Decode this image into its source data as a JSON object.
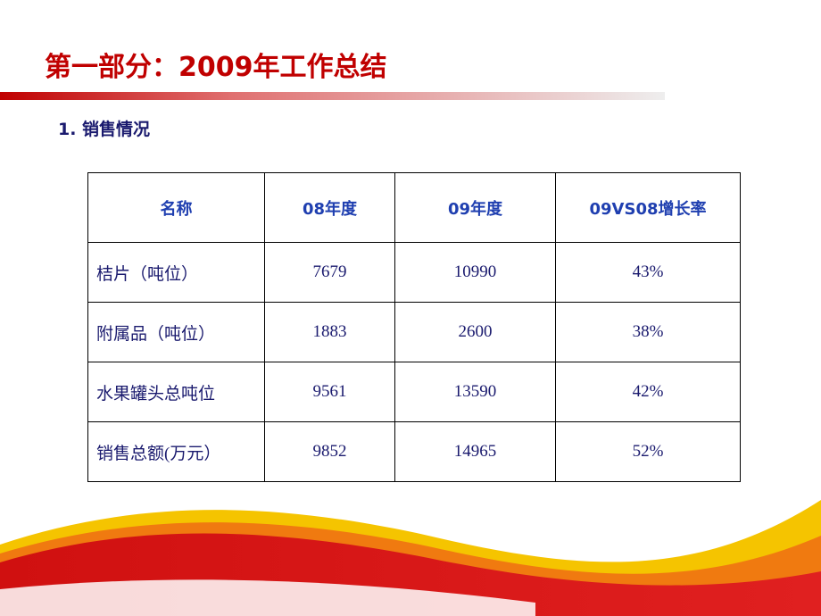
{
  "title": "第一部分：2009年工作总结",
  "subtitle": "1. 销售情况",
  "table": {
    "header": [
      "名称",
      "08年度",
      "09年度",
      "09VS08增长率"
    ],
    "rows": [
      [
        "桔片（吨位）",
        "7679",
        "10990",
        "43%"
      ],
      [
        "附属品（吨位）",
        "1883",
        "2600",
        "38%"
      ],
      [
        "水果罐头总吨位",
        "9561",
        "13590",
        "42%"
      ],
      [
        "销售总额(万元）",
        "9852",
        "14965",
        "52%"
      ]
    ]
  }
}
